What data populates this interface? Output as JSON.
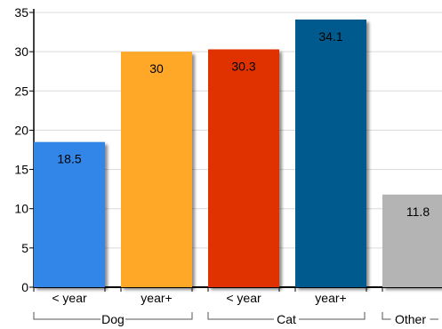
{
  "chart_data": {
    "type": "bar",
    "ylim": [
      0,
      35
    ],
    "yticks": [
      0,
      5,
      10,
      15,
      20,
      25,
      30,
      35
    ],
    "grid": true,
    "bars": [
      {
        "category": "< year",
        "group": "Dog",
        "value": 18.5,
        "label": "18.5",
        "color": "#3386e8"
      },
      {
        "category": "year+",
        "group": "Dog",
        "value": 30,
        "label": "30",
        "color": "#ffa726"
      },
      {
        "category": "< year",
        "group": "Cat",
        "value": 30.3,
        "label": "30.3",
        "color": "#e03300"
      },
      {
        "category": "year+",
        "group": "Cat",
        "value": 34.1,
        "label": "34.1",
        "color": "#045a8d"
      },
      {
        "category": "",
        "group": "Other",
        "value": 11.8,
        "label": "11.8",
        "color": "#b4b4b4"
      }
    ],
    "groups": [
      "Dog",
      "Cat",
      "Other"
    ]
  }
}
